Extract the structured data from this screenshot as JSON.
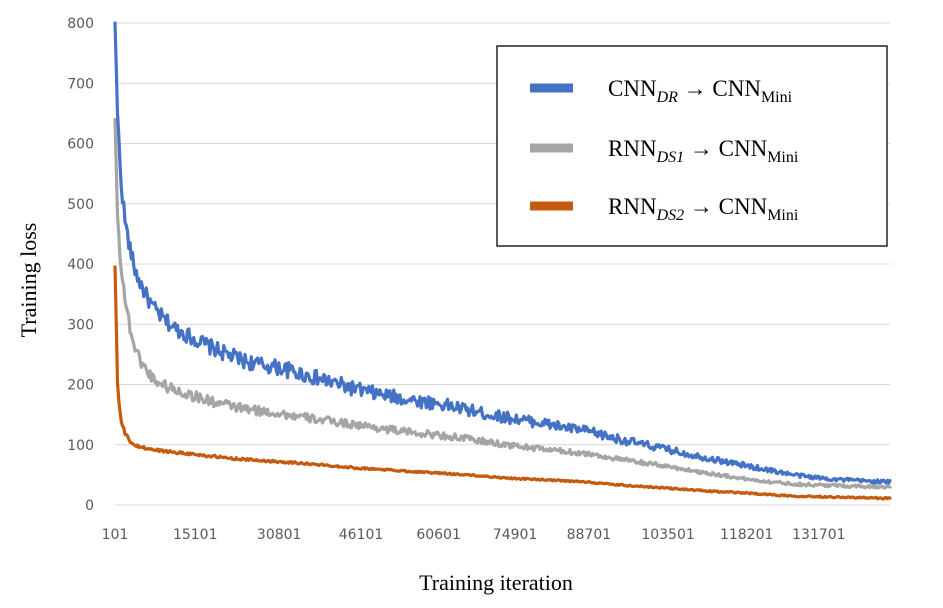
{
  "chart_data": {
    "type": "line",
    "xlabel": "Training iteration",
    "ylabel": "Training loss",
    "ylim": [
      0,
      800
    ],
    "yticks": [
      "0",
      "100",
      "200",
      "300",
      "400",
      "500",
      "600",
      "700",
      "800"
    ],
    "xticks": [
      "101",
      "15101",
      "30801",
      "46101",
      "60601",
      "74901",
      "88701",
      "103501",
      "118201",
      "131701"
    ],
    "xlim": [
      101,
      145000
    ],
    "grid": true,
    "legend_position": "top-right",
    "series": [
      {
        "name": "CNN_DR → CNN_Mini",
        "legend": {
          "base": "CNN",
          "sub": "DR",
          "arrow": " → ",
          "base2": "CNN",
          "sub2": "Mini"
        },
        "color": "#4472c4",
        "noise": 13,
        "x": [
          101,
          600,
          1200,
          2000,
          3000,
          4000,
          5500,
          7000,
          9000,
          11000,
          13000,
          15101,
          18000,
          21000,
          24000,
          27000,
          30801,
          34000,
          38000,
          42000,
          46101,
          50000,
          55000,
          60601,
          66000,
          70000,
          74901,
          80000,
          84000,
          88701,
          93000,
          98000,
          103501,
          108000,
          113000,
          118201,
          123000,
          127000,
          131701,
          136000,
          140000,
          145000
        ],
        "values": [
          800,
          640,
          540,
          470,
          420,
          385,
          355,
          330,
          310,
          295,
          285,
          275,
          262,
          250,
          240,
          233,
          228,
          220,
          210,
          200,
          190,
          183,
          175,
          168,
          158,
          150,
          143,
          136,
          129,
          122,
          112,
          102,
          92,
          83,
          74,
          65,
          57,
          50,
          45,
          42,
          40,
          38
        ]
      },
      {
        "name": "RNN_DS1 → CNN_Mini",
        "legend": {
          "base": "RNN",
          "sub": "DS1",
          "arrow": " → ",
          "base2": "CNN",
          "sub2": "Mini"
        },
        "color": "#a5a5a5",
        "noise": 10,
        "x": [
          101,
          600,
          1200,
          2000,
          3000,
          4000,
          5500,
          7000,
          9000,
          11000,
          13000,
          15101,
          18000,
          21000,
          24000,
          27000,
          30801,
          34000,
          38000,
          42000,
          46101,
          50000,
          55000,
          60601,
          66000,
          70000,
          74901,
          80000,
          84000,
          88701,
          93000,
          98000,
          103501,
          108000,
          113000,
          118201,
          123000,
          127000,
          131701,
          136000,
          140000,
          145000
        ],
        "values": [
          640,
          470,
          400,
          340,
          290,
          255,
          230,
          212,
          200,
          192,
          186,
          180,
          172,
          166,
          160,
          156,
          152,
          147,
          142,
          137,
          132,
          127,
          121,
          116,
          110,
          104,
          98,
          93,
          89,
          85,
          78,
          71,
          64,
          57,
          50,
          43,
          38,
          35,
          33,
          32,
          31,
          30
        ]
      },
      {
        "name": "RNN_DS2 → CNN_Mini",
        "legend": {
          "base": "RNN",
          "sub": "DS2",
          "arrow": " → ",
          "base2": "CNN",
          "sub2": "Mini"
        },
        "color": "#c55a11",
        "noise": 5,
        "x": [
          101,
          600,
          1200,
          2000,
          3000,
          4000,
          5500,
          7000,
          9000,
          11000,
          13000,
          15101,
          18000,
          21000,
          24000,
          27000,
          30801,
          34000,
          38000,
          42000,
          46101,
          50000,
          55000,
          60601,
          66000,
          70000,
          74901,
          80000,
          84000,
          88701,
          93000,
          98000,
          103501,
          108000,
          113000,
          118201,
          123000,
          127000,
          131701,
          136000,
          140000,
          145000
        ],
        "values": [
          395,
          190,
          140,
          118,
          105,
          98,
          95,
          92,
          90,
          88,
          86,
          84,
          81,
          78,
          76,
          74,
          72,
          70,
          67,
          64,
          61,
          59,
          56,
          53,
          50,
          47,
          44,
          42,
          40,
          38,
          34,
          31,
          28,
          25,
          22,
          20,
          17,
          15,
          14,
          13,
          12,
          11
        ]
      }
    ]
  }
}
